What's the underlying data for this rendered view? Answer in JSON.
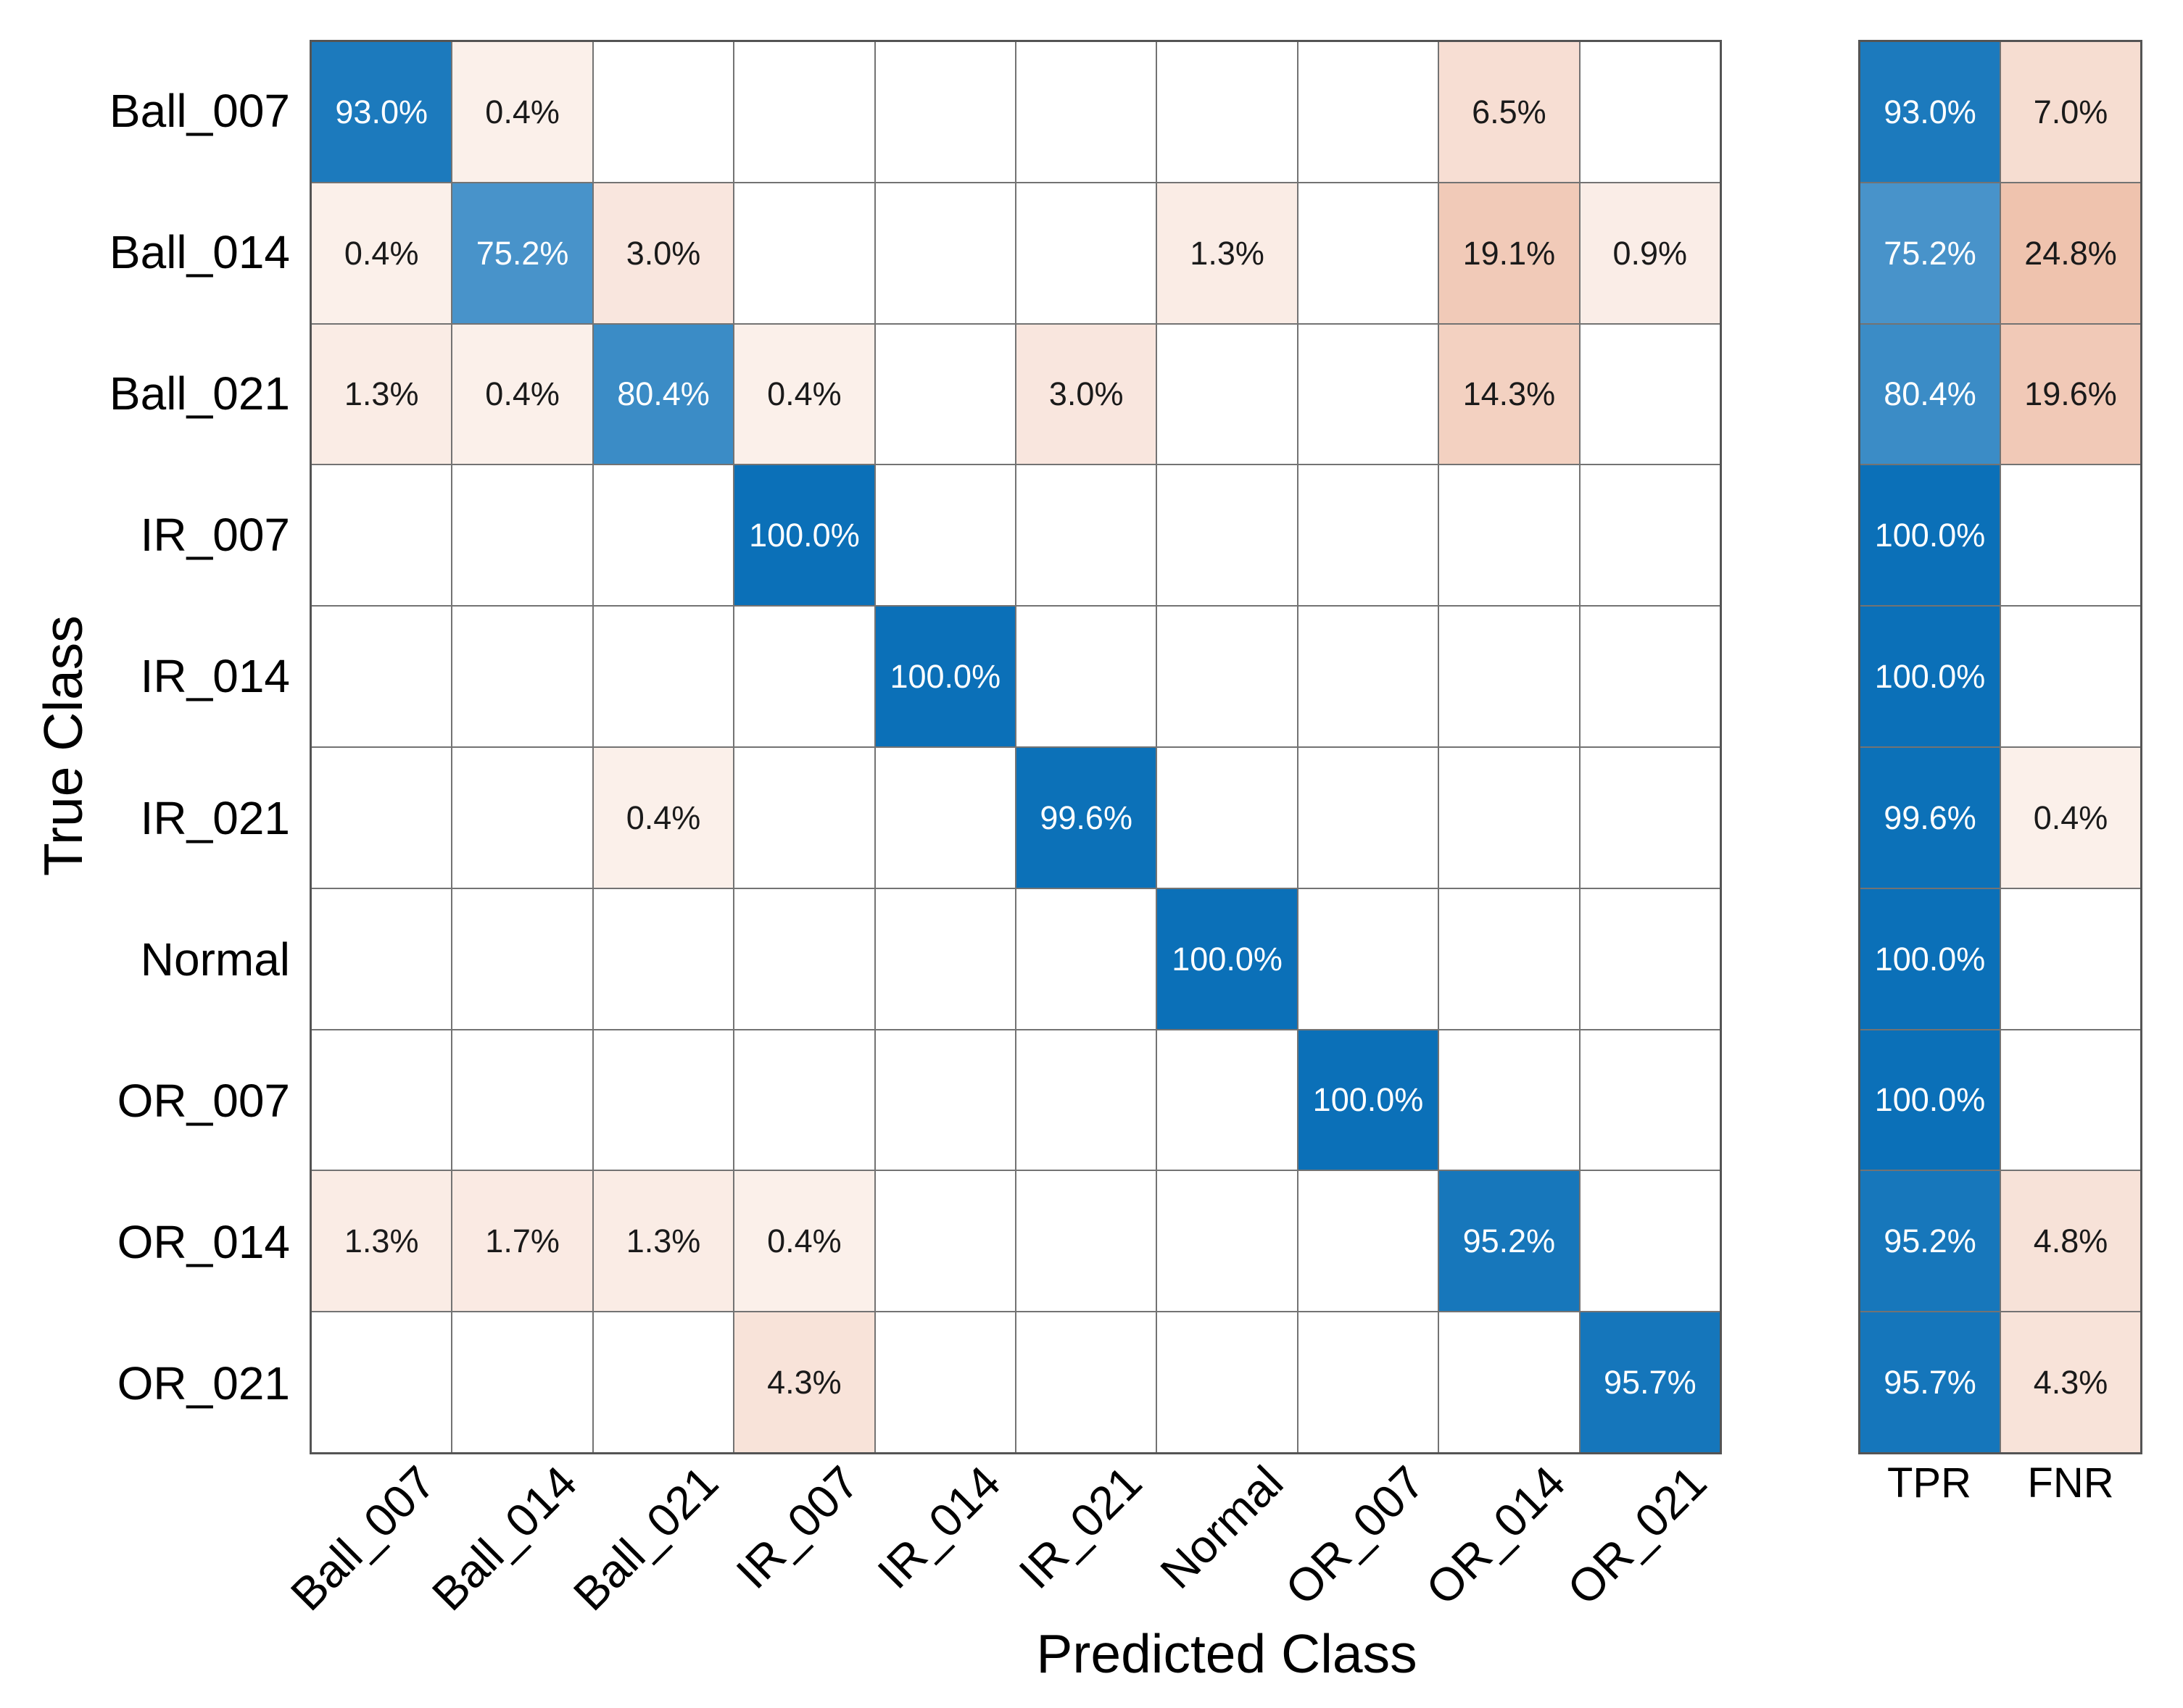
{
  "chart_data": {
    "type": "heatmap",
    "subtype": "confusion-matrix",
    "title": "",
    "xlabel": "Predicted Class",
    "ylabel": "True Class",
    "legend_position": "none",
    "grid": true,
    "value_format": "percent-one-decimal",
    "classes": [
      "Ball_007",
      "Ball_014",
      "Ball_021",
      "IR_007",
      "IR_014",
      "IR_021",
      "Normal",
      "OR_007",
      "OR_014",
      "OR_021"
    ],
    "matrix_percent": [
      [
        93.0,
        0.4,
        null,
        null,
        null,
        null,
        null,
        null,
        6.5,
        null
      ],
      [
        0.4,
        75.2,
        3.0,
        null,
        null,
        null,
        1.3,
        null,
        19.1,
        0.9
      ],
      [
        1.3,
        0.4,
        80.4,
        0.4,
        null,
        3.0,
        null,
        null,
        14.3,
        null
      ],
      [
        null,
        null,
        null,
        100.0,
        null,
        null,
        null,
        null,
        null,
        null
      ],
      [
        null,
        null,
        null,
        null,
        100.0,
        null,
        null,
        null,
        null,
        null
      ],
      [
        null,
        null,
        0.4,
        null,
        null,
        99.6,
        null,
        null,
        null,
        null
      ],
      [
        null,
        null,
        null,
        null,
        null,
        null,
        100.0,
        null,
        null,
        null
      ],
      [
        null,
        null,
        null,
        null,
        null,
        null,
        null,
        100.0,
        null,
        null
      ],
      [
        1.3,
        1.7,
        1.3,
        0.4,
        null,
        null,
        null,
        null,
        95.2,
        null
      ],
      [
        null,
        null,
        null,
        4.3,
        null,
        null,
        null,
        null,
        null,
        95.7
      ]
    ],
    "summary": {
      "tpr_label": "TPR",
      "fnr_label": "FNR",
      "tpr": [
        93.0,
        75.2,
        80.4,
        100.0,
        100.0,
        99.6,
        100.0,
        100.0,
        95.2,
        95.7
      ],
      "fnr": [
        7.0,
        24.8,
        19.6,
        null,
        null,
        0.4,
        null,
        null,
        4.8,
        4.3
      ]
    },
    "colors": {
      "diagonal_anchor": "#0B70B8",
      "offdiagonal_anchor": "#E18B63",
      "cell_background": "#FFFFFF",
      "grid_line": "#737373",
      "outer_border": "#545454",
      "text_on_dark": "#FFFFFF",
      "text_on_light": "#1A1A1A",
      "label_text": "#000000"
    }
  }
}
